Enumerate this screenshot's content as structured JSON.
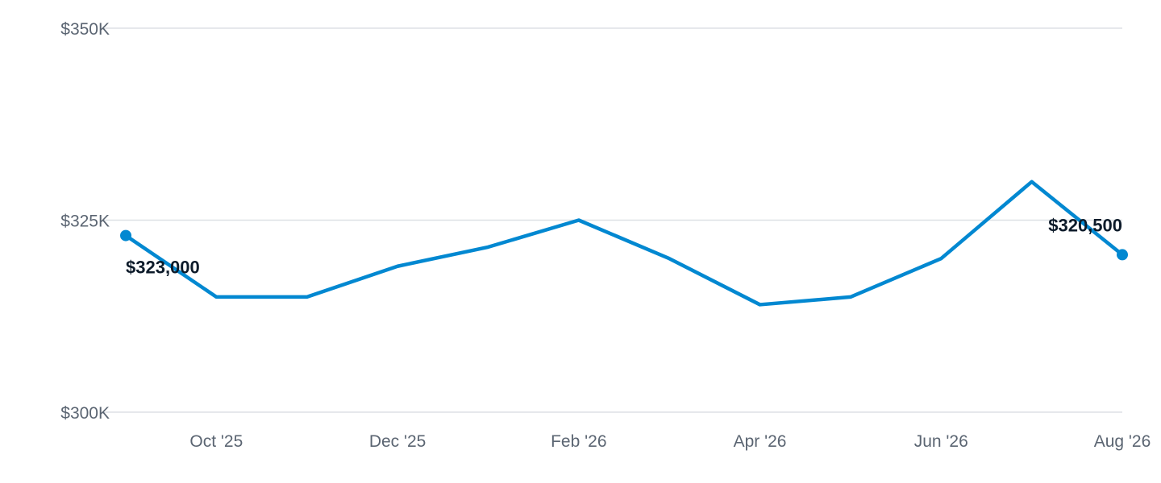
{
  "chart_data": {
    "type": "line",
    "title": "",
    "xlabel": "",
    "ylabel": "",
    "ylim": [
      300000,
      350000
    ],
    "y_ticks": [
      {
        "value": 350000,
        "label": "$350K"
      },
      {
        "value": 325000,
        "label": "$325K"
      },
      {
        "value": 300000,
        "label": "$300K"
      }
    ],
    "x": [
      "Sep '25",
      "Oct '25",
      "Nov '25",
      "Dec '25",
      "Jan '26",
      "Feb '26",
      "Mar '26",
      "Apr '26",
      "May '26",
      "Jun '26",
      "Jul '26",
      "Aug '26"
    ],
    "x_tick_labels": [
      "Oct '25",
      "Dec '25",
      "Feb '26",
      "Apr '26",
      "Jun '26",
      "Aug '26"
    ],
    "series": [
      {
        "values": [
          323000,
          315000,
          315000,
          319000,
          321500,
          325000,
          320000,
          314000,
          315000,
          320000,
          330000,
          320500
        ],
        "color": "#0288d1"
      }
    ],
    "annotations": [
      {
        "index": 0,
        "label": "$323,000",
        "position": "below-right"
      },
      {
        "index": 11,
        "label": "$320,500",
        "position": "above-left"
      }
    ],
    "grid": true,
    "legend": "none"
  }
}
